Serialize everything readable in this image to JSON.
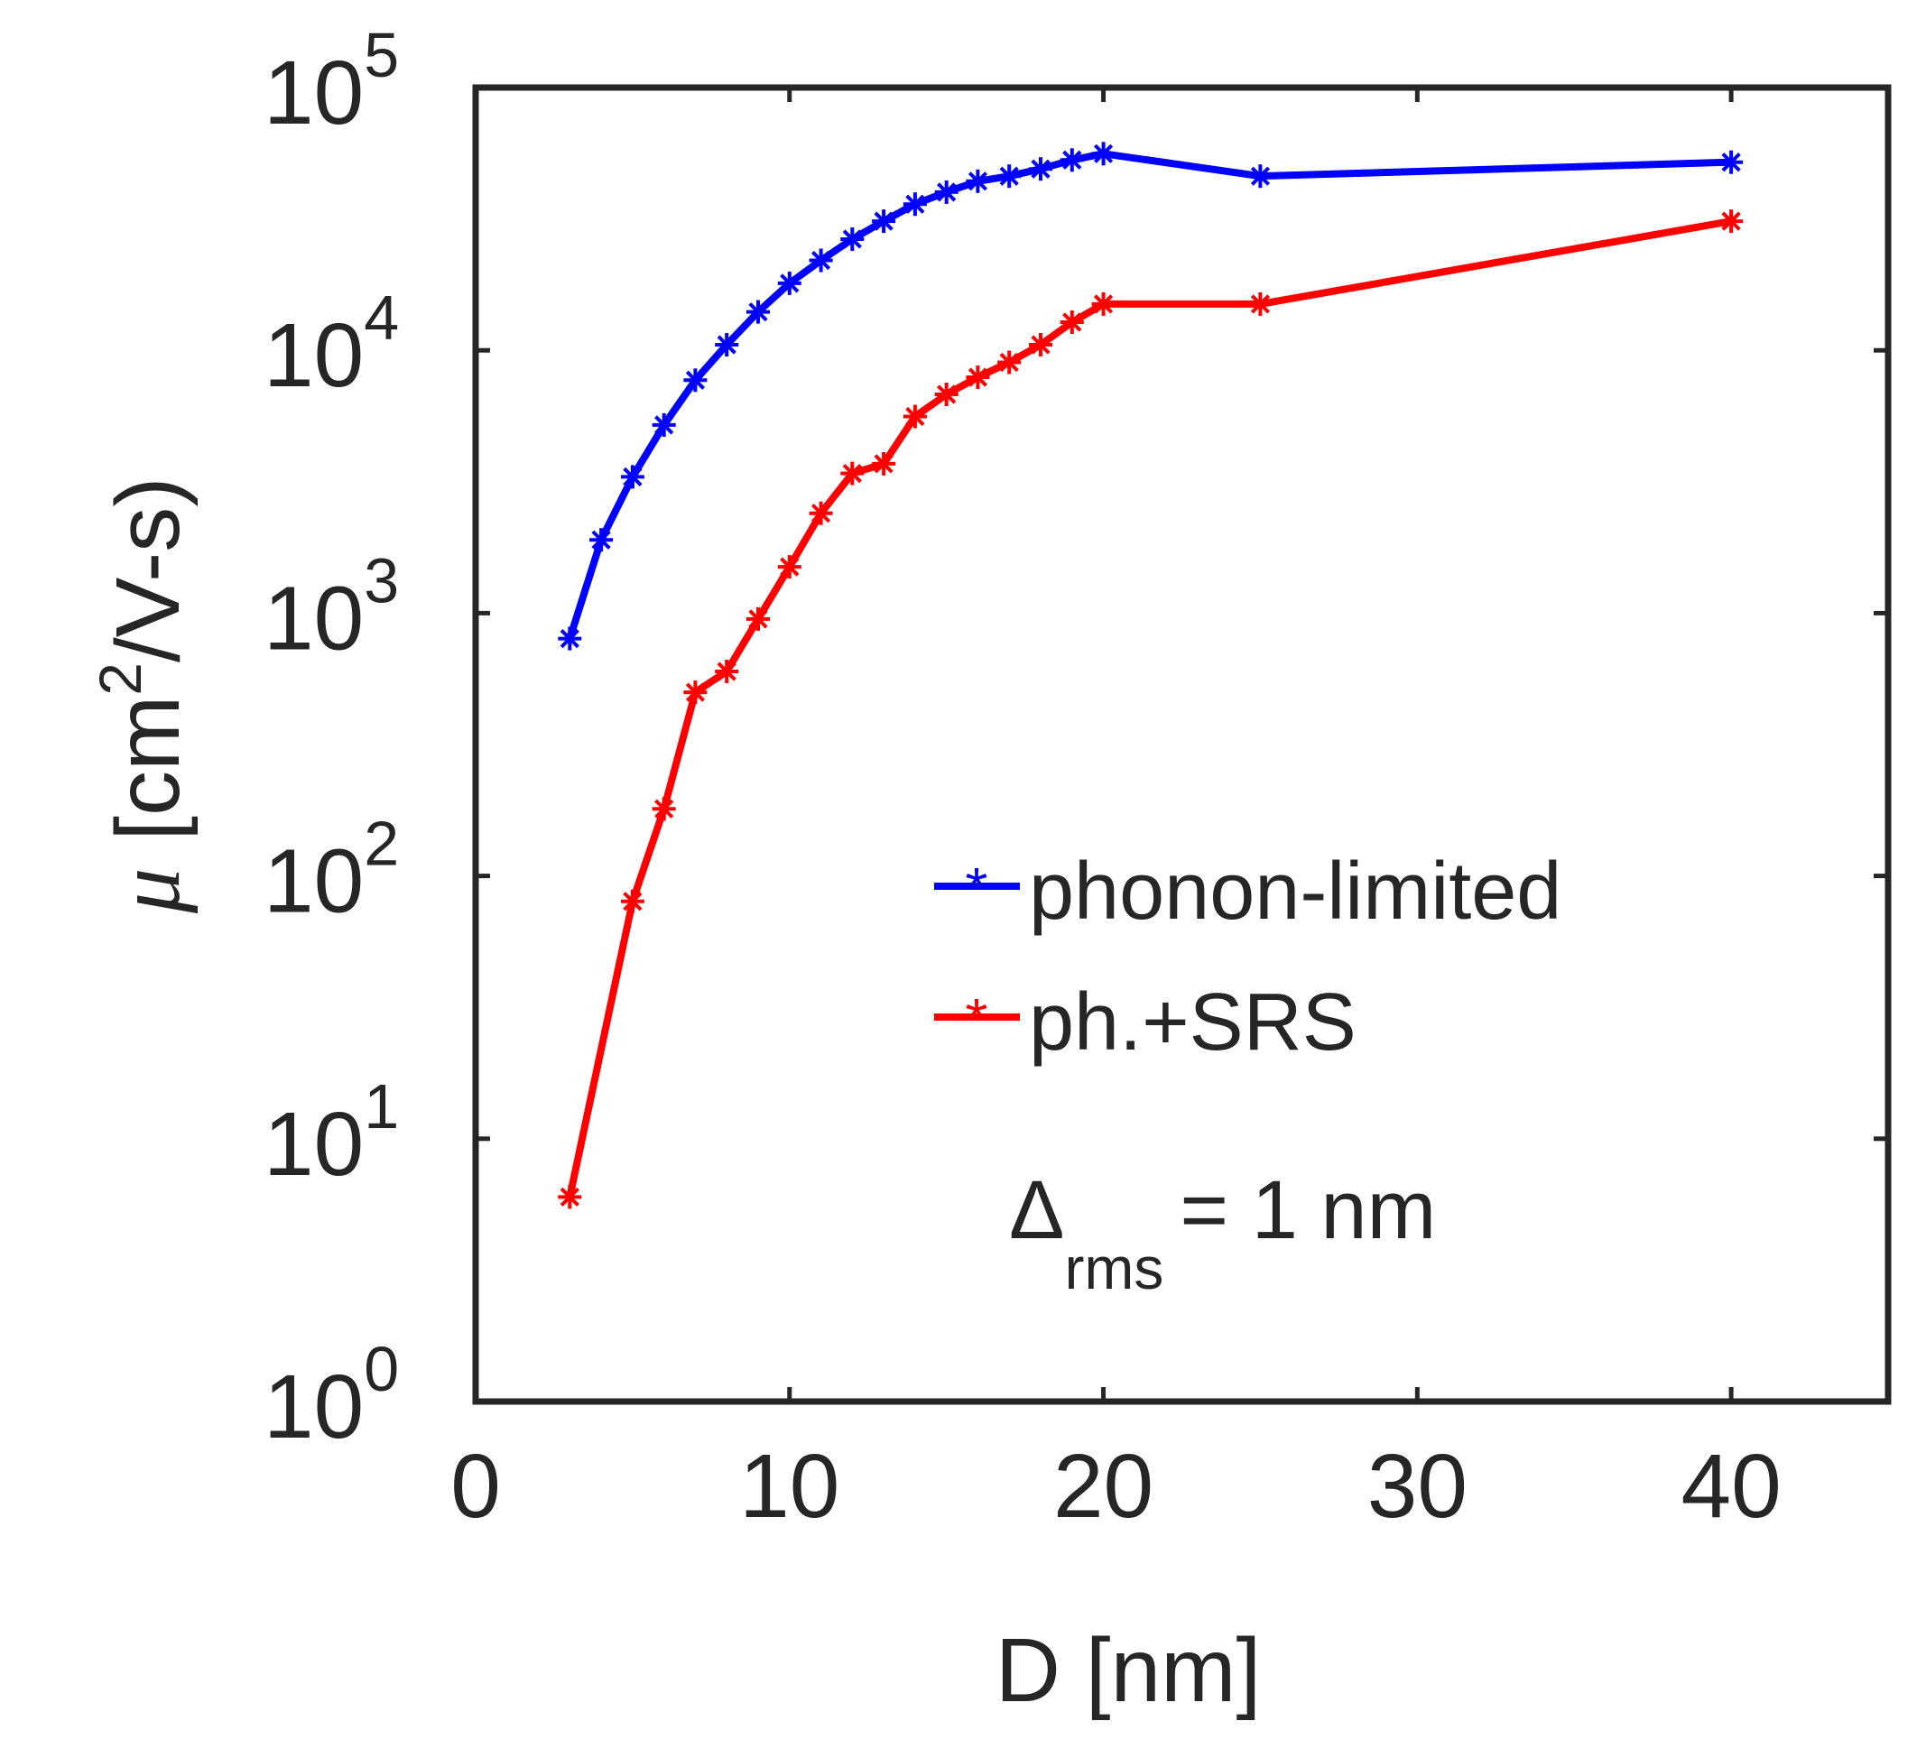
{
  "chart_data": {
    "type": "line",
    "title": "",
    "xlabel": "D [nm]",
    "ylabel": {
      "symbol": "μ",
      "text_pre": "[cm",
      "superscript": "2",
      "text_post": "/V-s)"
    },
    "xlim": [
      0,
      45
    ],
    "ylim": [
      1,
      100000
    ],
    "yscale": "log",
    "xticks": [
      0,
      10,
      20,
      30,
      40
    ],
    "yticks": [
      {
        "value": 1,
        "base": "10",
        "exp": "0"
      },
      {
        "value": 10,
        "base": "10",
        "exp": "1"
      },
      {
        "value": 100,
        "base": "10",
        "exp": "2"
      },
      {
        "value": 1000,
        "base": "10",
        "exp": "3"
      },
      {
        "value": 10000,
        "base": "10",
        "exp": "4"
      },
      {
        "value": 100000,
        "base": "10",
        "exp": "5"
      }
    ],
    "series": [
      {
        "name": "phonon-limited",
        "color": "#0000ff",
        "x": [
          3,
          4,
          5,
          6,
          7,
          8,
          9,
          10,
          11,
          12,
          13,
          14,
          15,
          16,
          17,
          18,
          19,
          20,
          25,
          40
        ],
        "values": [
          800,
          1900,
          3300,
          5200,
          7700,
          10500,
          14000,
          18000,
          22000,
          26500,
          31000,
          36000,
          40000,
          44000,
          46000,
          49000,
          53000,
          56000,
          46000,
          52000
        ]
      },
      {
        "name": "ph.+SRS",
        "color": "#ff0000",
        "x": [
          3,
          5,
          6,
          7,
          8,
          9,
          10,
          11,
          12,
          13,
          14,
          15,
          16,
          17,
          18,
          19,
          20,
          25,
          40
        ],
        "values": [
          6,
          80,
          180,
          500,
          600,
          950,
          1500,
          2400,
          3400,
          3700,
          5600,
          6800,
          7900,
          9000,
          10500,
          12800,
          15000,
          15000,
          31000
        ]
      }
    ],
    "legend": {
      "position": "center-right"
    },
    "annotation": {
      "symbol": "Δ",
      "subscript": "rms",
      "text": "= 1 nm"
    },
    "grid": false
  }
}
